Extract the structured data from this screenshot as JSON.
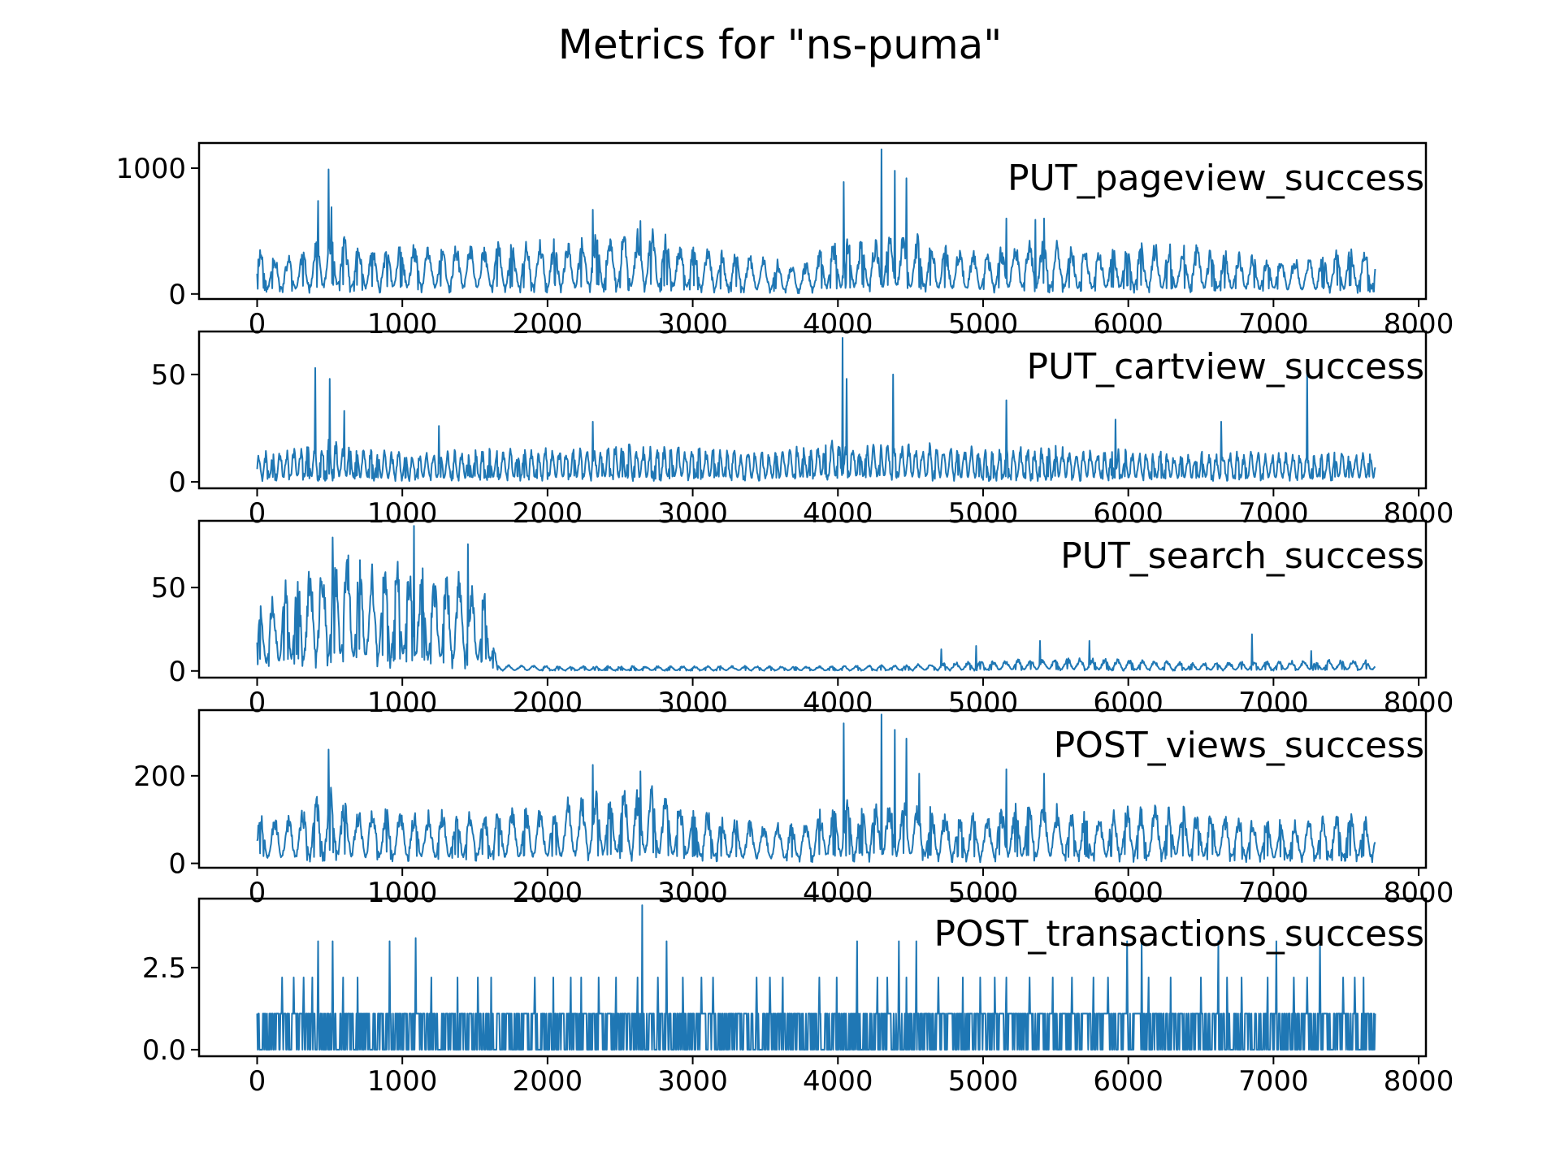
{
  "title": "Metrics for \"ns-puma\"",
  "colors": {
    "line": "#1f77b4",
    "frame": "#000000",
    "background": "#ffffff"
  },
  "chart_data": [
    {
      "type": "line",
      "label": "PUT_pageview_success",
      "legend_position": "top-right",
      "grid": false,
      "xlim": [
        -400,
        8050
      ],
      "ylim": [
        -40,
        1200
      ],
      "xticks": [
        0,
        1000,
        2000,
        3000,
        4000,
        5000,
        6000,
        7000,
        8000
      ],
      "yticks": [
        0,
        1000
      ],
      "x": [
        0,
        250,
        500,
        750,
        1000,
        1250,
        1500,
        1750,
        2000,
        2250,
        2500,
        2750,
        3000,
        3250,
        3500,
        3750,
        4000,
        4250,
        4500,
        4750,
        5000,
        5250,
        5500,
        5750,
        6000,
        6250,
        6500,
        6750,
        7000,
        7250,
        7500,
        7700
      ],
      "envelope": [
        380,
        300,
        500,
        380,
        420,
        380,
        400,
        410,
        420,
        470,
        500,
        520,
        380,
        330,
        290,
        230,
        460,
        440,
        480,
        380,
        330,
        440,
        420,
        360,
        390,
        410,
        380,
        330,
        310,
        310,
        370,
        360
      ],
      "spikes": [
        [
          420,
          740
        ],
        [
          490,
          990
        ],
        [
          510,
          690
        ],
        [
          2310,
          670
        ],
        [
          2640,
          580
        ],
        [
          4040,
          890
        ],
        [
          4300,
          1150
        ],
        [
          4390,
          980
        ],
        [
          4470,
          920
        ],
        [
          5160,
          600
        ],
        [
          5360,
          590
        ],
        [
          5420,
          600
        ]
      ],
      "cycles": 80,
      "seed": 11
    },
    {
      "type": "line",
      "label": "PUT_cartview_success",
      "legend_position": "top-right",
      "grid": false,
      "xlim": [
        -400,
        8050
      ],
      "ylim": [
        -3,
        70
      ],
      "xticks": [
        0,
        1000,
        2000,
        3000,
        4000,
        5000,
        6000,
        7000,
        8000
      ],
      "yticks": [
        0,
        50
      ],
      "x": [
        0,
        500,
        1000,
        1500,
        2000,
        2500,
        3000,
        3500,
        4000,
        4500,
        5000,
        5500,
        6000,
        6500,
        7000,
        7500,
        7700
      ],
      "envelope": [
        14,
        20,
        14,
        15,
        16,
        18,
        17,
        14,
        20,
        18,
        16,
        17,
        15,
        14,
        14,
        15,
        14
      ],
      "spikes": [
        [
          400,
          53
        ],
        [
          500,
          48
        ],
        [
          600,
          33
        ],
        [
          1250,
          26
        ],
        [
          2310,
          28
        ],
        [
          4030,
          67
        ],
        [
          4060,
          48
        ],
        [
          4380,
          50
        ],
        [
          5160,
          38
        ],
        [
          5910,
          29
        ],
        [
          6640,
          28
        ],
        [
          7230,
          53
        ]
      ],
      "cycles": 160,
      "seed": 23
    },
    {
      "type": "line",
      "label": "PUT_search_success",
      "legend_position": "top-right",
      "grid": false,
      "xlim": [
        -400,
        8050
      ],
      "ylim": [
        -4,
        90
      ],
      "xticks": [
        0,
        1000,
        2000,
        3000,
        4000,
        5000,
        6000,
        7000,
        8000
      ],
      "yticks": [
        0,
        50
      ],
      "x": [
        0,
        200,
        400,
        600,
        800,
        1000,
        1200,
        1400,
        1600,
        1650,
        2000,
        3000,
        4000,
        4500,
        5000,
        5500,
        6000,
        6500,
        7000,
        7500,
        7700
      ],
      "envelope": [
        40,
        55,
        65,
        75,
        62,
        70,
        60,
        58,
        45,
        4,
        3,
        3,
        3,
        4,
        6,
        8,
        7,
        5,
        6,
        7,
        6
      ],
      "spikes": [
        [
          520,
          80
        ],
        [
          1080,
          87
        ],
        [
          1450,
          76
        ],
        [
          4710,
          13
        ],
        [
          4950,
          15
        ],
        [
          5390,
          18
        ],
        [
          5730,
          18
        ],
        [
          6850,
          22
        ],
        [
          7260,
          12
        ]
      ],
      "cycles": 90,
      "seed": 37
    },
    {
      "type": "line",
      "label": "POST_views_success",
      "legend_position": "top-right",
      "grid": false,
      "xlim": [
        -400,
        8050
      ],
      "ylim": [
        -10,
        350
      ],
      "xticks": [
        0,
        1000,
        2000,
        3000,
        4000,
        5000,
        6000,
        7000,
        8000
      ],
      "yticks": [
        0,
        200
      ],
      "x": [
        0,
        250,
        500,
        750,
        1000,
        1250,
        1500,
        1750,
        2000,
        2250,
        2500,
        2750,
        3000,
        3250,
        3500,
        3750,
        4000,
        4250,
        4500,
        4750,
        5000,
        5250,
        5500,
        5750,
        6000,
        6250,
        6500,
        6750,
        7000,
        7250,
        7500,
        7700
      ],
      "envelope": [
        120,
        110,
        170,
        125,
        130,
        120,
        125,
        125,
        130,
        160,
        170,
        175,
        130,
        105,
        95,
        90,
        150,
        140,
        150,
        120,
        110,
        140,
        135,
        120,
        130,
        135,
        125,
        110,
        100,
        100,
        115,
        110
      ],
      "spikes": [
        [
          490,
          260
        ],
        [
          2310,
          225
        ],
        [
          2640,
          210
        ],
        [
          4040,
          320
        ],
        [
          4300,
          340
        ],
        [
          4390,
          305
        ],
        [
          4470,
          285
        ],
        [
          4560,
          205
        ],
        [
          5160,
          215
        ],
        [
          5420,
          205
        ]
      ],
      "cycles": 80,
      "seed": 53
    },
    {
      "type": "line",
      "label": "POST_transactions_success",
      "legend_position": "top-right",
      "grid": false,
      "xlim": [
        -400,
        8050
      ],
      "ylim": [
        -0.2,
        4.6
      ],
      "xticks": [
        0,
        1000,
        2000,
        3000,
        4000,
        5000,
        6000,
        7000,
        8000
      ],
      "yticks": [
        0.0,
        2.5
      ],
      "ytick_labels": [
        "0.0",
        "2.5"
      ],
      "levels": [
        1.1,
        2.2,
        3.3
      ],
      "spikes": [
        [
          2650,
          4.4
        ],
        [
          420,
          3.3
        ],
        [
          520,
          3.3
        ],
        [
          910,
          3.3
        ],
        [
          1090,
          3.4
        ],
        [
          2820,
          3.3
        ],
        [
          4130,
          3.3
        ],
        [
          4420,
          3.3
        ],
        [
          4540,
          3.3
        ],
        [
          5990,
          3.3
        ],
        [
          6090,
          3.3
        ],
        [
          6620,
          3.3
        ],
        [
          7020,
          3.3
        ],
        [
          7320,
          3.3
        ]
      ],
      "spike_levels_22": [
        170,
        250,
        320,
        380,
        590,
        690,
        1200,
        1380,
        1520,
        1610,
        1910,
        2040,
        2160,
        2230,
        2350,
        2470,
        2620,
        2760,
        2930,
        3060,
        3140,
        3440,
        3530,
        3620,
        3870,
        3990,
        4270,
        4340,
        4470,
        4690,
        4860,
        4980,
        5080,
        5160,
        5320,
        5480,
        5610,
        5760,
        5860,
        6140,
        6290,
        6500,
        6680,
        6780,
        6960,
        7140,
        7230,
        7480,
        7560,
        7620
      ],
      "x_start": 0,
      "x_end": 7700,
      "seed": 71
    }
  ]
}
